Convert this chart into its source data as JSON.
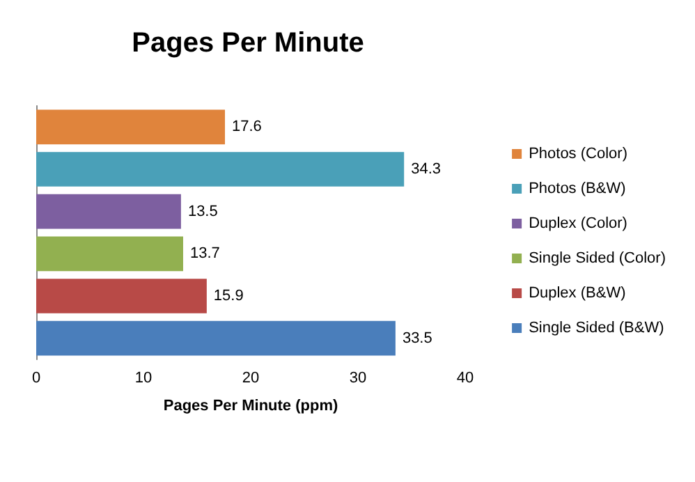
{
  "chart_data": {
    "type": "bar",
    "orientation": "horizontal",
    "title": "Pages Per Minute",
    "xlabel": "Pages Per Minute (ppm)",
    "categories": [
      null,
      null,
      null,
      null,
      null,
      null
    ],
    "series": [
      {
        "name": "Photos (Color)",
        "color": "#e0843c",
        "values": [
          17.6,
          null,
          null,
          null,
          null,
          null
        ]
      },
      {
        "name": "Photos (B&W)",
        "color": "#4aa0b8",
        "values": [
          null,
          34.3,
          null,
          null,
          null,
          null
        ]
      },
      {
        "name": "Duplex (Color)",
        "color": "#7d5fa0",
        "values": [
          null,
          null,
          13.5,
          null,
          null,
          null
        ]
      },
      {
        "name": "Single Sided (Color)",
        "color": "#92b050",
        "values": [
          null,
          null,
          null,
          13.7,
          null,
          null
        ]
      },
      {
        "name": "Duplex (B&W)",
        "color": "#b84a47",
        "values": [
          null,
          null,
          null,
          null,
          15.9,
          null
        ]
      },
      {
        "name": "Single Sided (B&W)",
        "color": "#4a7ebb",
        "values": [
          null,
          null,
          null,
          null,
          null,
          33.5
        ]
      }
    ],
    "xlim": [
      0,
      40
    ],
    "xticks": [
      0,
      10,
      20,
      30,
      40
    ],
    "data_labels": true,
    "legend": "right",
    "grid": false
  }
}
